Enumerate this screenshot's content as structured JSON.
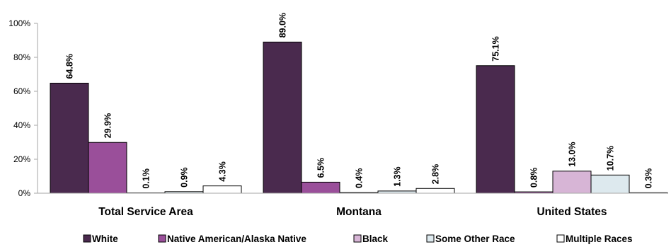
{
  "chart_data": {
    "type": "bar",
    "categories": [
      "Total Service Area",
      "Montana",
      "United States"
    ],
    "series": [
      {
        "name": "White",
        "values": [
          64.8,
          89.0,
          75.1
        ],
        "color": "#4a2a4e"
      },
      {
        "name": "Native American/Alaska Native",
        "values": [
          29.9,
          6.5,
          0.8
        ],
        "color": "#9a4f9a"
      },
      {
        "name": "Black",
        "values": [
          0.1,
          0.4,
          13.0
        ],
        "color": "#d7b5d6"
      },
      {
        "name": "Some Other Race",
        "values": [
          0.9,
          1.3,
          10.7
        ],
        "color": "#dde9ee"
      },
      {
        "name": "Multiple Races",
        "values": [
          4.3,
          2.8,
          0.3
        ],
        "color": "#ffffff"
      }
    ],
    "data_labels": [
      [
        "64.8%",
        "89.0%",
        "75.1%"
      ],
      [
        "29.9%",
        "6.5%",
        "0.8%"
      ],
      [
        "0.1%",
        "0.4%",
        "13.0%"
      ],
      [
        "0.9%",
        "1.3%",
        "10.7%"
      ],
      [
        "4.3%",
        "2.8%",
        "0.3%"
      ]
    ],
    "yticks": [
      0,
      20,
      40,
      60,
      80,
      100
    ],
    "ytick_labels": [
      "0%",
      "20%",
      "40%",
      "60%",
      "80%",
      "100%"
    ],
    "ylim": [
      0,
      100
    ],
    "title": "",
    "xlabel": "",
    "ylabel": "",
    "grid": false,
    "legend_position": "bottom"
  }
}
